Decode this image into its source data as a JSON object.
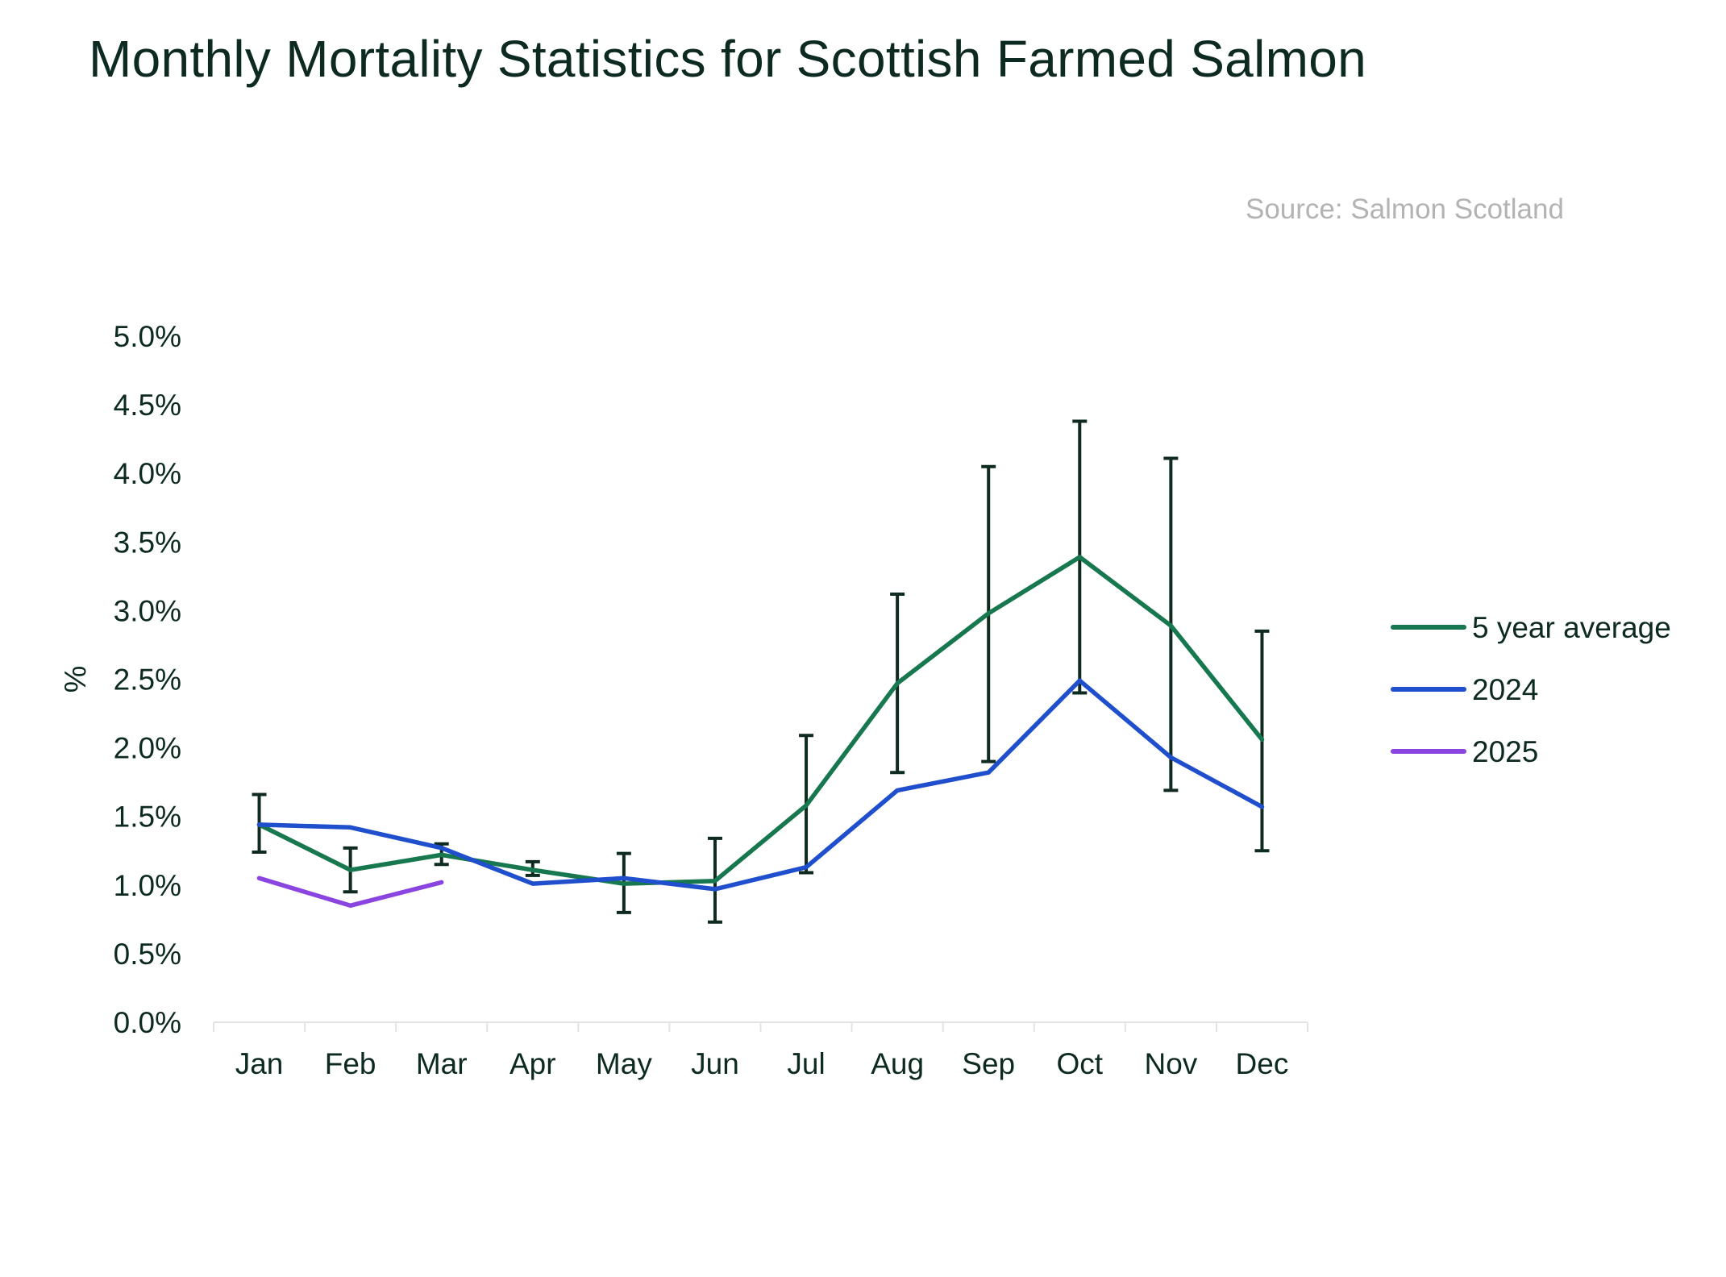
{
  "title": "Monthly Mortality Statistics for Scottish Farmed Salmon",
  "source": "Source: Salmon Scotland",
  "chart_data": {
    "type": "line",
    "title": "Monthly Mortality Statistics for Scottish Farmed Salmon",
    "xlabel": "",
    "ylabel": "%",
    "categories": [
      "Jan",
      "Feb",
      "Mar",
      "Apr",
      "May",
      "Jun",
      "Jul",
      "Aug",
      "Sep",
      "Oct",
      "Nov",
      "Dec"
    ],
    "ylim": [
      0,
      5.0
    ],
    "yticks": [
      0.0,
      0.5,
      1.0,
      1.5,
      2.0,
      2.5,
      3.0,
      3.5,
      4.0,
      4.5,
      5.0
    ],
    "ytick_labels": [
      "0.0%",
      "0.5%",
      "1.0%",
      "1.5%",
      "2.0%",
      "2.5%",
      "3.0%",
      "3.5%",
      "4.0%",
      "4.5%",
      "5.0%"
    ],
    "grid": false,
    "legend_position": "right",
    "series": [
      {
        "name": "5 year average",
        "color": "#17784f",
        "values": [
          1.44,
          1.11,
          1.22,
          1.11,
          1.01,
          1.03,
          1.58,
          2.47,
          2.98,
          3.39,
          2.89,
          2.06
        ],
        "error_low": [
          1.24,
          0.95,
          1.15,
          1.07,
          0.8,
          0.73,
          1.09,
          1.82,
          1.9,
          2.4,
          1.69,
          1.25
        ],
        "error_high": [
          1.66,
          1.27,
          1.3,
          1.17,
          1.23,
          1.34,
          2.09,
          3.12,
          4.05,
          4.38,
          4.11,
          2.85
        ]
      },
      {
        "name": "2024",
        "color": "#1f4fcc",
        "values": [
          1.44,
          1.42,
          1.27,
          1.01,
          1.05,
          0.97,
          1.13,
          1.69,
          1.82,
          2.49,
          1.93,
          1.57
        ]
      },
      {
        "name": "2025",
        "color": "#8a45e0",
        "values": [
          1.05,
          0.85,
          1.02,
          null,
          null,
          null,
          null,
          null,
          null,
          null,
          null,
          null
        ]
      }
    ]
  }
}
